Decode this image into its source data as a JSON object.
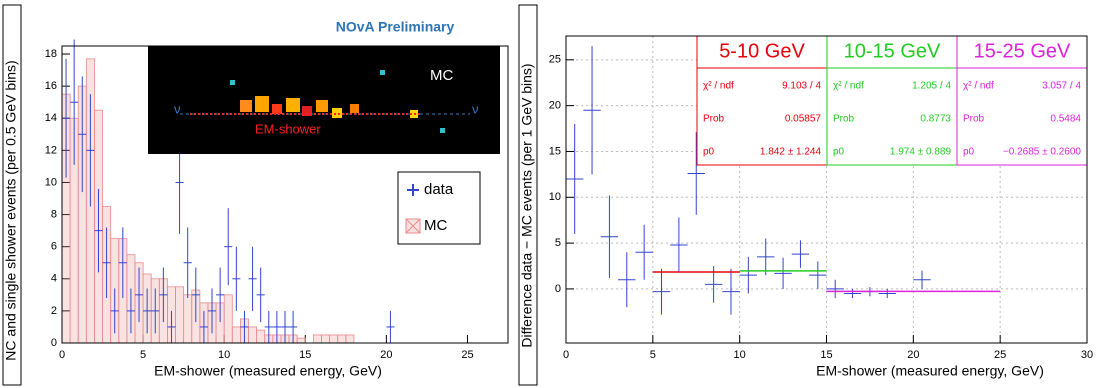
{
  "chart_data": [
    {
      "type": "histogram",
      "title": "NOvA Preliminary",
      "x_label": "EM-shower (measured energy, GeV)",
      "y_label": "NC and single shower events (per 0.5 GeV bins)",
      "xlim": [
        0,
        27.5
      ],
      "ylim": [
        0,
        18.5
      ],
      "xticks": [
        0,
        5,
        10,
        15,
        20,
        25
      ],
      "yticks": [
        0,
        2,
        4,
        6,
        8,
        10,
        12,
        14,
        16,
        18
      ],
      "inset": {
        "labels": [
          "MC",
          "EM-shower",
          "ν",
          "ν"
        ]
      },
      "series": [
        {
          "name": "MC",
          "color": "#e88a8a",
          "bins": [
            0,
            0.5,
            1,
            1.5,
            2,
            2.5,
            3,
            3.5,
            4,
            4.5,
            5,
            5.5,
            6,
            6.5,
            7,
            7.5,
            8,
            8.5,
            9,
            9.5,
            10,
            10.5,
            11,
            11.5,
            12,
            12.5,
            13,
            13.5,
            14,
            14.5,
            15,
            15.5,
            16,
            16.5,
            17,
            17.5,
            18
          ],
          "values": [
            15.5,
            14,
            16,
            17.7,
            14.5,
            8.5,
            6.5,
            6.5,
            5.5,
            5,
            4.3,
            4,
            4,
            3.5,
            3.5,
            3,
            3.3,
            2.5,
            2.5,
            2.5,
            3,
            1,
            1.5,
            1,
            0.8,
            0.5,
            0.5,
            0.5,
            0.5,
            0.3,
            0,
            0.5,
            0.5,
            0.5,
            0.5,
            0.5
          ]
        },
        {
          "name": "data",
          "color": "#3344cc",
          "x": [
            0.25,
            0.75,
            1.25,
            1.75,
            2.25,
            2.75,
            3.25,
            3.75,
            4.25,
            4.75,
            5.25,
            5.75,
            6.25,
            6.75,
            7.25,
            7.75,
            8.25,
            8.75,
            9.25,
            9.75,
            10.25,
            10.75,
            11.25,
            11.75,
            12.25,
            12.75,
            13.25,
            13.75,
            14.25,
            20.25
          ],
          "values": [
            14,
            15,
            13,
            12,
            7,
            5,
            2,
            5,
            2,
            3,
            2,
            2,
            3,
            1,
            10,
            5,
            3,
            1,
            2,
            3,
            6,
            4,
            1,
            4,
            3,
            1,
            1,
            1,
            1,
            1
          ],
          "errors": [
            3.7,
            3.9,
            3.6,
            3.5,
            2.6,
            2.2,
            1.4,
            2.2,
            1.4,
            1.7,
            1.4,
            1.4,
            1.7,
            1,
            3.2,
            2.2,
            1.7,
            1,
            1.4,
            1.7,
            2.4,
            2,
            1,
            2,
            1.7,
            1,
            1,
            1,
            1,
            1
          ]
        }
      ]
    },
    {
      "type": "errorbar",
      "x_label": "EM-shower (measured energy, GeV)",
      "y_label": "Difference data − MC events (per 1 GeV bins)",
      "xlim": [
        0,
        30
      ],
      "ylim": [
        -5.9,
        27.6
      ],
      "xticks": [
        0,
        5,
        10,
        15,
        20,
        25,
        30
      ],
      "yticks": [
        0,
        5,
        10,
        15,
        20,
        25
      ],
      "grid": true,
      "series": [
        {
          "color": "#3344cc",
          "x": [
            0.5,
            1.5,
            2.5,
            3.5,
            4.5,
            5.5,
            6.5,
            7.5,
            8.5,
            9.5,
            10.5,
            11.5,
            12.5,
            13.5,
            14.5,
            15.5,
            16.5,
            17.5,
            18.5,
            20.5
          ],
          "values": [
            12,
            19.5,
            5.7,
            1,
            4,
            -0.3,
            4.8,
            12.6,
            0.5,
            -0.3,
            1.5,
            3.5,
            1.7,
            3.8,
            1.5,
            0,
            -0.5,
            -0.3,
            -0.5,
            1
          ],
          "errors": [
            6,
            7,
            4.5,
            3,
            3,
            2.5,
            3,
            4.5,
            2,
            2.5,
            2,
            2,
            1.7,
            1.5,
            1.5,
            1,
            0.5,
            0.5,
            0.5,
            1
          ]
        }
      ],
      "fits": [
        {
          "title": "5-10 GeV",
          "color": "#e8000b",
          "range": [
            5,
            10
          ],
          "p0": 1.842,
          "rows": [
            [
              "χ² / ndf",
              "9.103 / 4"
            ],
            [
              "Prob",
              "0.05857"
            ],
            [
              "p0",
              "1.842 ± 1.244"
            ]
          ]
        },
        {
          "title": "10-15 GeV",
          "color": "#22cc22",
          "range": [
            10,
            15
          ],
          "p0": 1.974,
          "rows": [
            [
              "χ² / ndf",
              "1.205 / 4"
            ],
            [
              "Prob",
              "0.8773"
            ],
            [
              "p0",
              "1.974 ± 0.889"
            ]
          ]
        },
        {
          "title": "15-25 GeV",
          "color": "#dd22dd",
          "range": [
            15,
            25
          ],
          "p0": -0.2685,
          "rows": [
            [
              "χ² / ndf",
              "3.057 / 4"
            ],
            [
              "Prob",
              "0.5484"
            ],
            [
              "p0",
              "−0.2685 ± 0.2600"
            ]
          ]
        }
      ]
    }
  ]
}
